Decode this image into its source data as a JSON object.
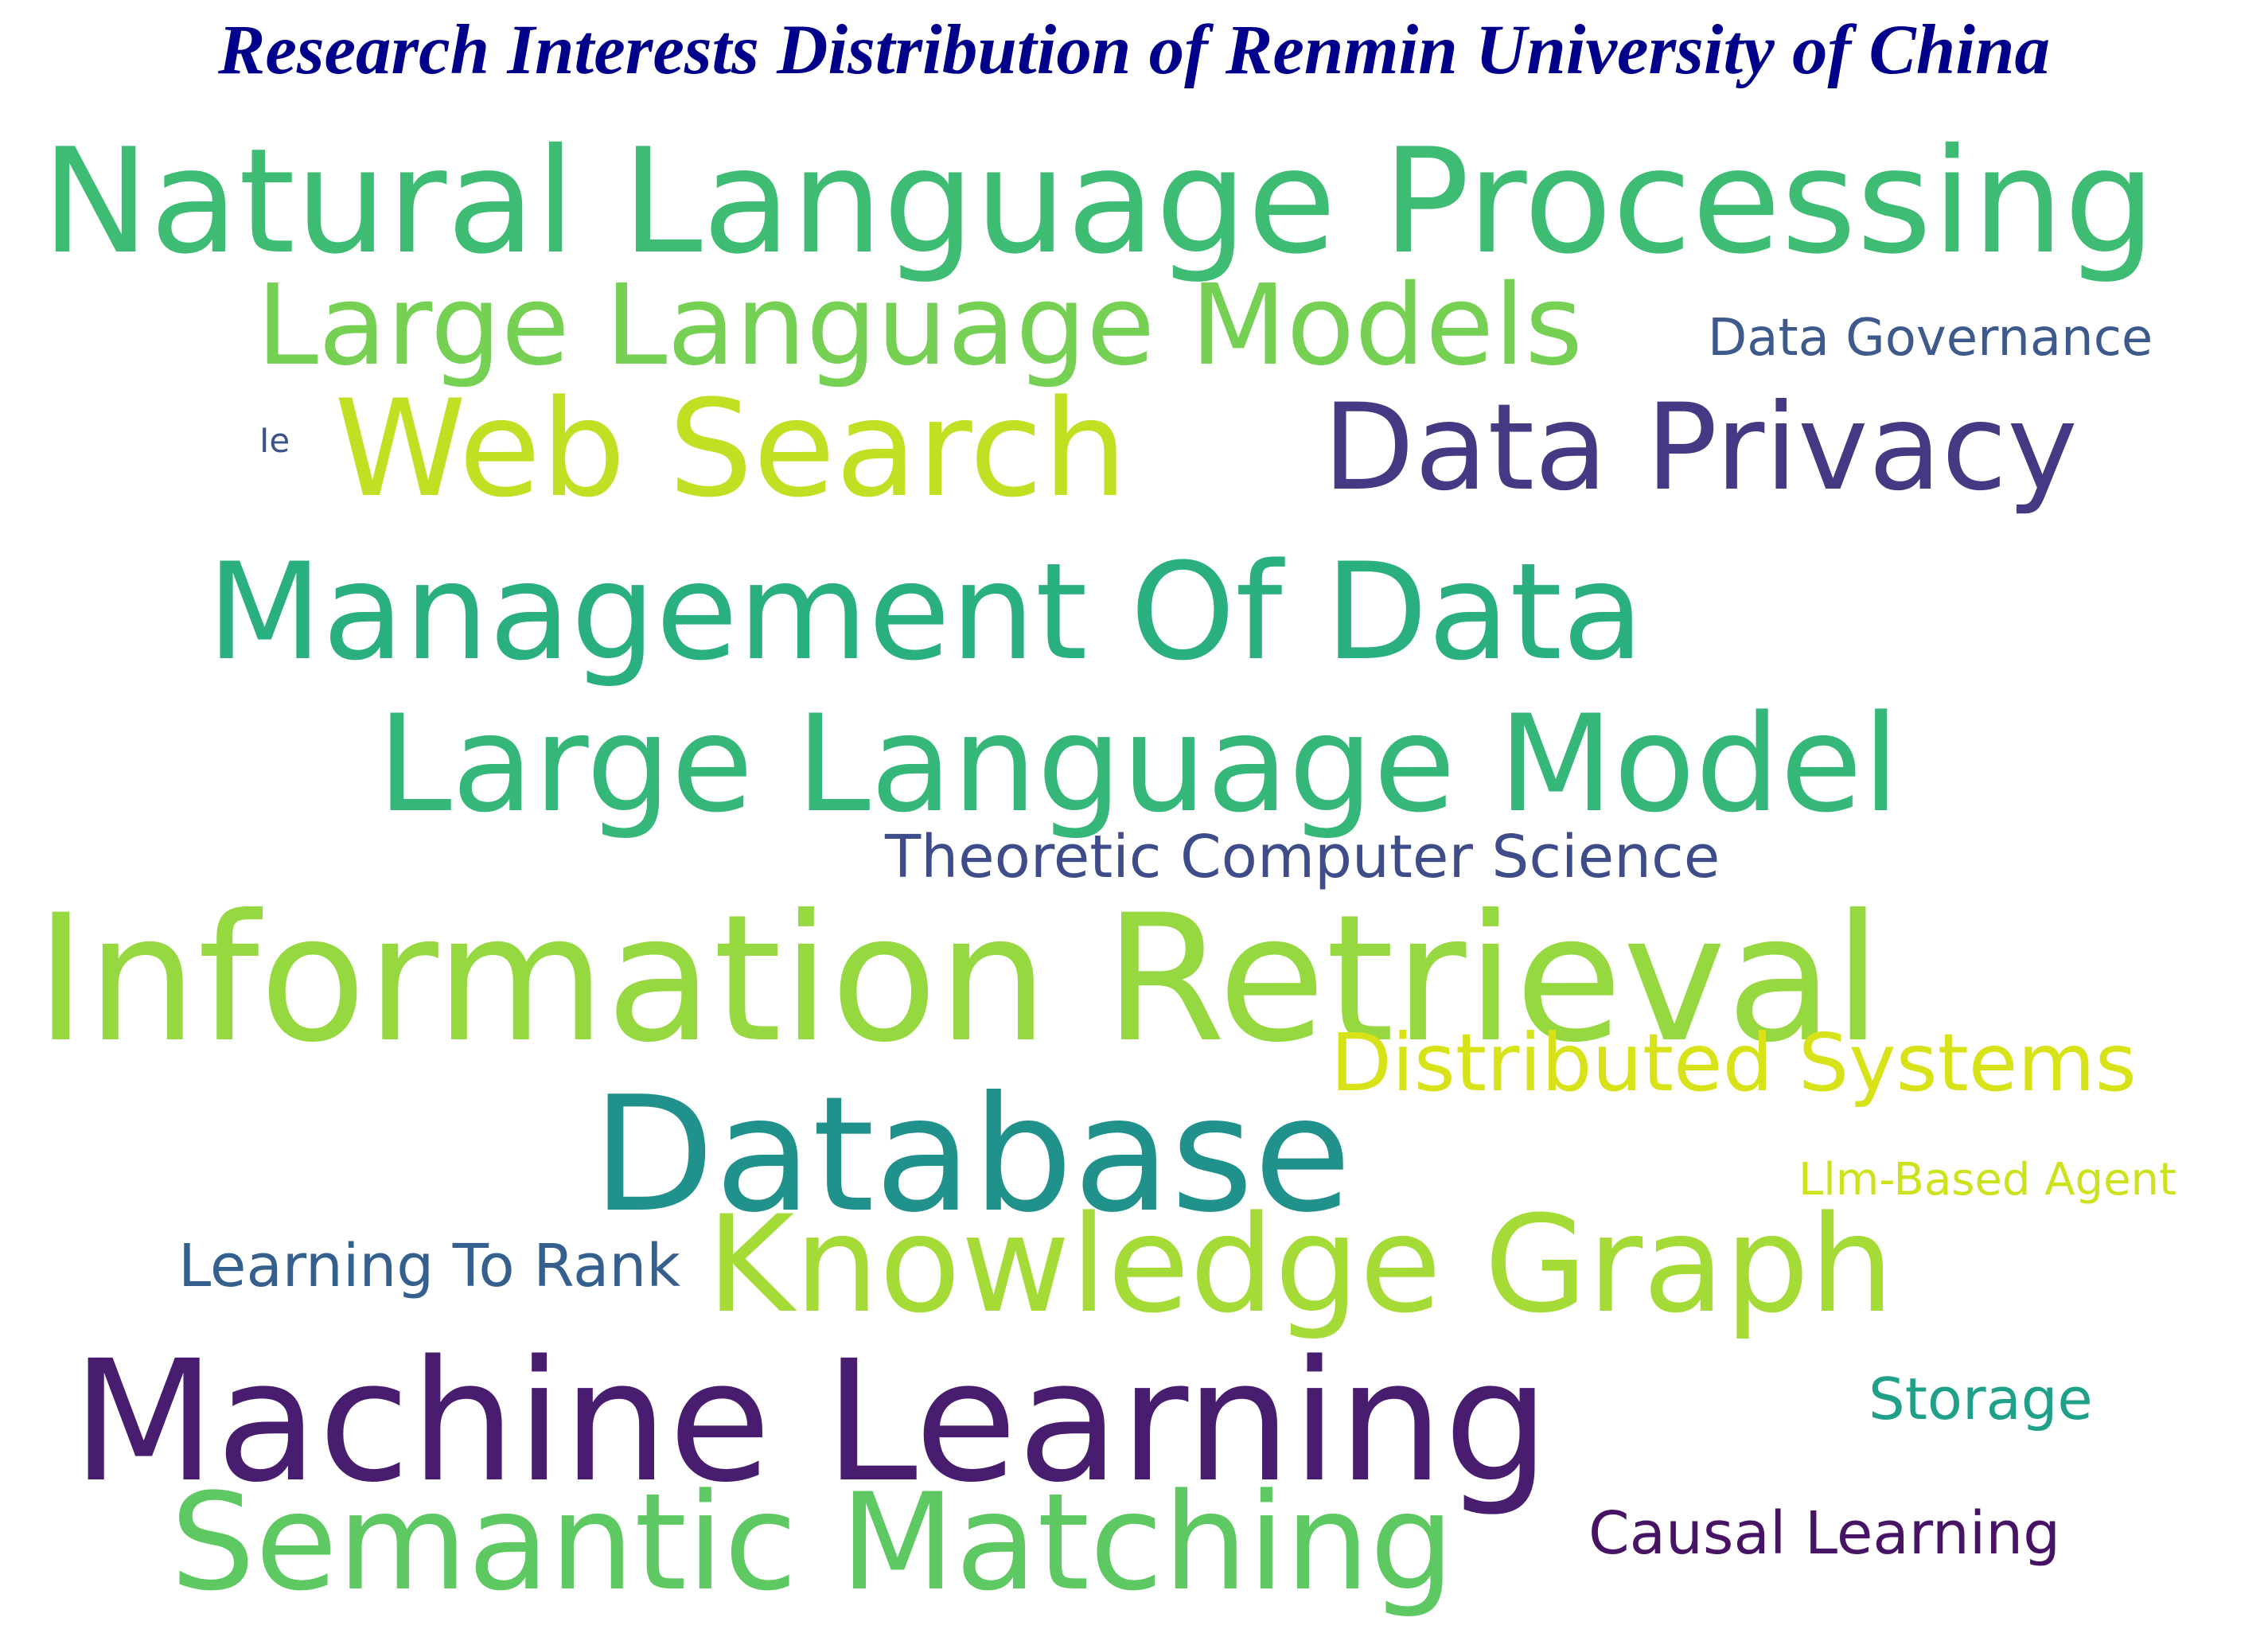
{
  "title": "Research Interests Distribution of Renmin University of China",
  "words": [
    {
      "text": "Natural Language Processing",
      "color": "#3fbc73"
    },
    {
      "text": "Large Language Models",
      "color": "#75d054"
    },
    {
      "text": "Data Governance",
      "color": "#3e5a8c"
    },
    {
      "text": "Ie",
      "color": "#3b528b"
    },
    {
      "text": "Web Search",
      "color": "#c2df23"
    },
    {
      "text": "Data Privacy",
      "color": "#443a83"
    },
    {
      "text": "Management Of Data",
      "color": "#2ab07f"
    },
    {
      "text": "Large Language Model",
      "color": "#35b779"
    },
    {
      "text": "Theoretic Computer Science",
      "color": "#3e4c8a"
    },
    {
      "text": "Information Retrieval",
      "color": "#95d840"
    },
    {
      "text": "Distributed Systems",
      "color": "#d8e219"
    },
    {
      "text": "Database",
      "color": "#21918c"
    },
    {
      "text": "Llm-Based Agent",
      "color": "#cde11d"
    },
    {
      "text": "Learning To Rank",
      "color": "#355f8d"
    },
    {
      "text": "Knowledge Graph",
      "color": "#a5db36"
    },
    {
      "text": "Machine Learning",
      "color": "#481d6f"
    },
    {
      "text": "Storage",
      "color": "#1fa088"
    },
    {
      "text": "Semantic Matching",
      "color": "#5ec962"
    },
    {
      "text": "Causal Learning",
      "color": "#471365"
    }
  ]
}
